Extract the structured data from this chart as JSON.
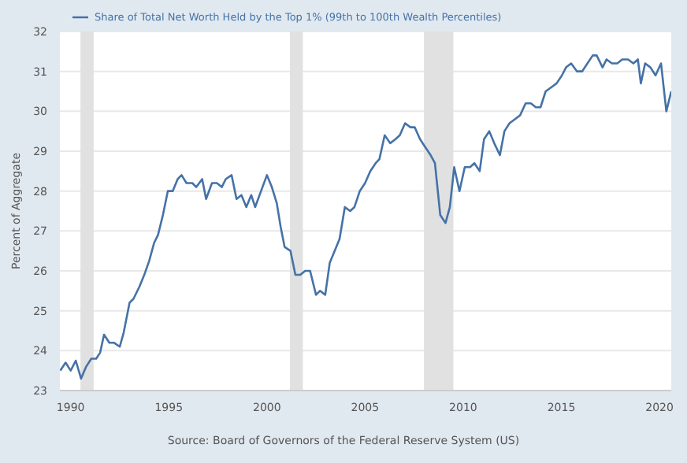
{
  "chart_data": {
    "type": "line",
    "ylabel": "Percent of Aggregate",
    "annotations": [
      "Source: Board of Governors of the Federal Reserve System (US)"
    ],
    "x": [
      1989.47,
      1989.74,
      1990.0,
      1990.26,
      1990.53,
      1990.79,
      1991.05,
      1991.3,
      1991.5,
      1991.7,
      1991.97,
      1992.2,
      1992.5,
      1992.7,
      1993.0,
      1993.2,
      1993.5,
      1993.75,
      1994.0,
      1994.25,
      1994.45,
      1994.7,
      1994.95,
      1995.2,
      1995.45,
      1995.65,
      1995.9,
      1996.2,
      1996.4,
      1996.7,
      1996.9,
      1997.2,
      1997.45,
      1997.7,
      1997.9,
      1998.2,
      1998.45,
      1998.7,
      1998.95,
      1999.2,
      1999.4,
      1999.7,
      2000.0,
      2000.25,
      2000.5,
      2000.7,
      2000.9,
      2001.2,
      2001.45,
      2001.7,
      2001.95,
      2002.2,
      2002.5,
      2002.7,
      2002.97,
      2003.2,
      2003.45,
      2003.7,
      2003.97,
      2004.24,
      2004.46,
      2004.73,
      2005.0,
      2005.27,
      2005.54,
      2005.73,
      2006.0,
      2006.28,
      2006.55,
      2006.77,
      2007.04,
      2007.31,
      2007.53,
      2007.8,
      2008.07,
      2008.34,
      2008.56,
      2008.83,
      2009.1,
      2009.32,
      2009.54,
      2009.81,
      2010.08,
      2010.35,
      2010.57,
      2010.84,
      2011.06,
      2011.33,
      2011.58,
      2011.87,
      2012.1,
      2012.36,
      2012.63,
      2012.9,
      2013.18,
      2013.45,
      2013.7,
      2013.94,
      2014.2,
      2014.48,
      2014.76,
      2015.03,
      2015.24,
      2015.5,
      2015.8,
      2016.06,
      2016.33,
      2016.6,
      2016.8,
      2017.1,
      2017.3,
      2017.58,
      2017.85,
      2018.1,
      2018.4,
      2018.67,
      2018.9,
      2019.05,
      2019.27,
      2019.54,
      2019.8,
      2020.08,
      2020.35,
      2020.6
    ],
    "series": [
      {
        "name": "Share of Total Net Worth Held by the Top 1% (99th to 100th Wealth Percentiles)",
        "color": "#4572a7",
        "values": [
          23.5,
          23.7,
          23.5,
          23.75,
          23.3,
          23.6,
          23.8,
          23.8,
          23.95,
          24.4,
          24.2,
          24.2,
          24.1,
          24.45,
          25.2,
          25.3,
          25.6,
          25.9,
          26.25,
          26.7,
          26.9,
          27.4,
          28.0,
          28.0,
          28.3,
          28.4,
          28.2,
          28.2,
          28.1,
          28.3,
          27.8,
          28.2,
          28.2,
          28.1,
          28.3,
          28.4,
          27.8,
          27.9,
          27.6,
          27.9,
          27.6,
          28.0,
          28.4,
          28.1,
          27.7,
          27.1,
          26.6,
          26.5,
          25.9,
          25.9,
          26.0,
          26.0,
          25.4,
          25.5,
          25.4,
          26.2,
          26.5,
          26.8,
          27.6,
          27.5,
          27.6,
          28.0,
          28.2,
          28.5,
          28.7,
          28.8,
          29.4,
          29.2,
          29.3,
          29.4,
          29.7,
          29.6,
          29.6,
          29.3,
          29.1,
          28.9,
          28.7,
          27.4,
          27.2,
          27.6,
          28.6,
          28.0,
          28.6,
          28.6,
          28.7,
          28.5,
          29.3,
          29.5,
          29.2,
          28.9,
          29.5,
          29.7,
          29.8,
          29.9,
          30.2,
          30.2,
          30.1,
          30.1,
          30.5,
          30.6,
          30.7,
          30.9,
          31.1,
          31.2,
          31.0,
          31.0,
          31.2,
          31.4,
          31.4,
          31.1,
          31.3,
          31.2,
          31.2,
          31.3,
          31.3,
          31.2,
          31.3,
          30.7,
          31.2,
          31.1,
          30.9,
          31.2,
          30.0,
          30.5
        ]
      }
    ],
    "xlim": [
      1989.45,
      2020.6
    ],
    "xticks": [
      1990,
      1995,
      2000,
      2005,
      2010,
      2015,
      2020
    ],
    "ylim": [
      23,
      32
    ],
    "yticks": [
      23,
      24,
      25,
      26,
      27,
      28,
      29,
      30,
      31,
      32
    ],
    "bands": [
      {
        "axis": "x",
        "from": 1990.5,
        "to": 1991.17,
        "color": "#e1e1e1"
      },
      {
        "axis": "x",
        "from": 2001.17,
        "to": 2001.83,
        "color": "#e1e1e1"
      },
      {
        "axis": "x",
        "from": 2008.0,
        "to": 2009.5,
        "color": "#e1e1e1"
      }
    ],
    "grid": "y",
    "legend": "top left",
    "marker": "none",
    "line_style": "solid"
  }
}
